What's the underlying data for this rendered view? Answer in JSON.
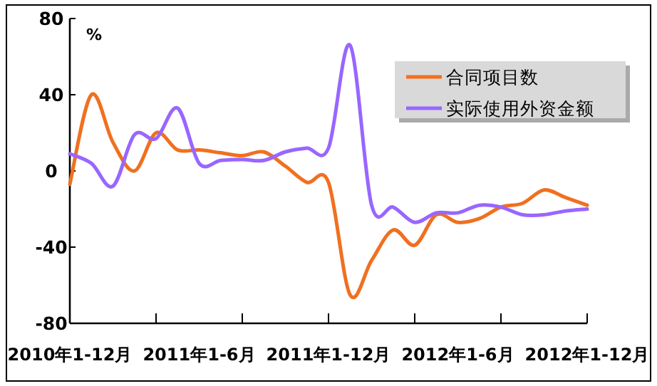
{
  "chart_data": {
    "type": "line",
    "ylabel": "%",
    "categories": [
      "2010年1-12月",
      null,
      null,
      null,
      null,
      null,
      "2011年1-6月",
      null,
      null,
      null,
      null,
      null,
      "2011年1-12月",
      null,
      null,
      null,
      null,
      null,
      "2012年1-6月",
      null,
      null,
      null,
      null,
      null,
      "2012年1-12月"
    ],
    "series": [
      {
        "name": "合同项目数",
        "color": "#f07020",
        "values": [
          -7,
          40,
          15,
          0,
          20,
          11,
          11,
          9.5,
          8,
          10,
          2.5,
          -6,
          -6,
          -65,
          -47,
          -31,
          -39,
          -23,
          -27,
          -25,
          -19,
          -17,
          -10,
          -14,
          -18
        ]
      },
      {
        "name": "实际使用外资金额",
        "color": "#9966ff",
        "values": [
          9,
          4,
          -8,
          19,
          17,
          33,
          4,
          5.5,
          6,
          5.5,
          10,
          12,
          12,
          66,
          -18,
          -19,
          -27,
          -22,
          -22,
          -18,
          -19,
          -23,
          -23,
          -21,
          -20
        ]
      }
    ],
    "ylim": [
      -80,
      80
    ],
    "yticks": [
      -80,
      -40,
      0,
      40,
      80
    ],
    "grid": false,
    "legend": "top right",
    "marker": "none",
    "line_style": "solid"
  }
}
